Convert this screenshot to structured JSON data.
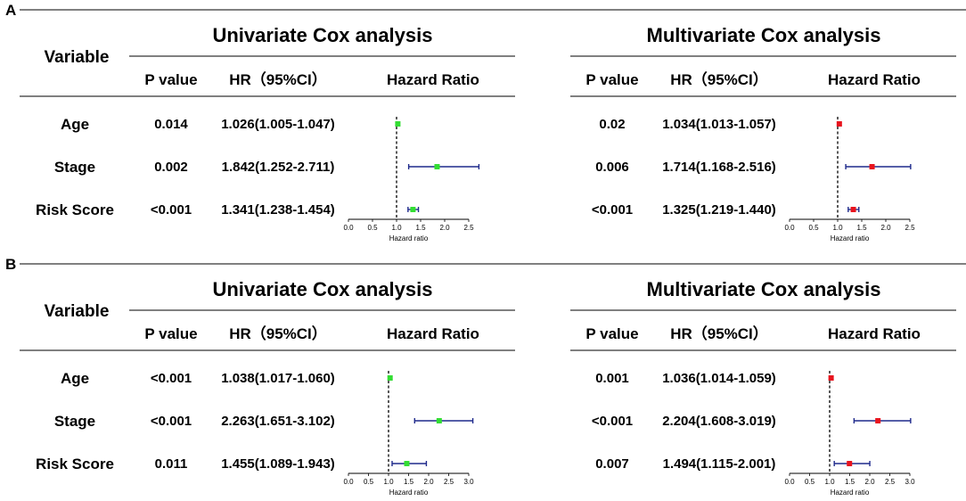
{
  "panels": [
    {
      "panel_label": "A",
      "variable_header": "Variable",
      "analyses": [
        {
          "title": "Univariate Cox analysis",
          "columns": {
            "p_value": "P value",
            "hr": "HR（95%CI）",
            "hazard_ratio": "Hazard Ratio"
          },
          "rows": [
            {
              "label": "Age",
              "p": "0.014",
              "hr_text": "1.026(1.005-1.047)"
            },
            {
              "label": "Stage",
              "p": "0.002",
              "hr_text": "1.842(1.252-2.711)"
            },
            {
              "label": "Risk Score",
              "p": "<0.001",
              "hr_text": "1.341(1.238-1.454)"
            }
          ]
        },
        {
          "title": "Multivariate Cox analysis",
          "columns": {
            "p_value": "P value",
            "hr": "HR（95%CI）",
            "hazard_ratio": "Hazard Ratio"
          },
          "rows": [
            {
              "label": "Age",
              "p": "0.02",
              "hr_text": "1.034(1.013-1.057)"
            },
            {
              "label": "Stage",
              "p": "0.006",
              "hr_text": "1.714(1.168-2.516)"
            },
            {
              "label": "Risk Score",
              "p": "<0.001",
              "hr_text": "1.325(1.219-1.440)"
            }
          ]
        }
      ]
    },
    {
      "panel_label": "B",
      "variable_header": "Variable",
      "analyses": [
        {
          "title": "Univariate Cox analysis",
          "columns": {
            "p_value": "P value",
            "hr": "HR（95%CI）",
            "hazard_ratio": "Hazard Ratio"
          },
          "rows": [
            {
              "label": "Age",
              "p": "<0.001",
              "hr_text": "1.038(1.017-1.060)"
            },
            {
              "label": "Stage",
              "p": "<0.001",
              "hr_text": "2.263(1.651-3.102)"
            },
            {
              "label": "Risk Score",
              "p": "0.011",
              "hr_text": "1.455(1.089-1.943)"
            }
          ]
        },
        {
          "title": "Multivariate Cox analysis",
          "columns": {
            "p_value": "P value",
            "hr": "HR（95%CI）",
            "hazard_ratio": "Hazard Ratio"
          },
          "rows": [
            {
              "label": "Age",
              "p": "0.001",
              "hr_text": "1.036(1.014-1.059)"
            },
            {
              "label": "Stage",
              "p": "<0.001",
              "hr_text": "2.204(1.608-3.019)"
            },
            {
              "label": "Risk Score",
              "p": "0.007",
              "hr_text": "1.494(1.115-2.001)"
            }
          ]
        }
      ]
    }
  ],
  "chart_data": [
    {
      "type": "forest",
      "panel": "A",
      "title": "Univariate Cox analysis",
      "xlabel": "Hazard ratio",
      "xlim": [
        0,
        2.5
      ],
      "ticks": [
        "0.0",
        "0.5",
        "1.0",
        "1.5",
        "2.0",
        "2.5"
      ],
      "reference": 1,
      "marker_color": "#33dd33",
      "ci_color": "#1f2a8c",
      "categories": [
        "Age",
        "Stage",
        "Risk Score"
      ],
      "hr": [
        1.026,
        1.842,
        1.341
      ],
      "lower": [
        1.005,
        1.252,
        1.238
      ],
      "upper": [
        1.047,
        2.711,
        1.454
      ]
    },
    {
      "type": "forest",
      "panel": "A",
      "title": "Multivariate Cox analysis",
      "xlabel": "Hazard ratio",
      "xlim": [
        0,
        2.5
      ],
      "ticks": [
        "0.0",
        "0.5",
        "1.0",
        "1.5",
        "2.0",
        "2.5"
      ],
      "reference": 1,
      "marker_color": "#e8141e",
      "ci_color": "#1f2a8c",
      "categories": [
        "Age",
        "Stage",
        "Risk Score"
      ],
      "hr": [
        1.034,
        1.714,
        1.325
      ],
      "lower": [
        1.013,
        1.168,
        1.219
      ],
      "upper": [
        1.057,
        2.516,
        1.44
      ]
    },
    {
      "type": "forest",
      "panel": "B",
      "title": "Univariate Cox analysis",
      "xlabel": "Hazard ratio",
      "xlim": [
        0,
        3
      ],
      "ticks": [
        "0.0",
        "0.5",
        "1.0",
        "1.5",
        "2.0",
        "2.5",
        "3.0"
      ],
      "reference": 1,
      "marker_color": "#33dd33",
      "ci_color": "#1f2a8c",
      "categories": [
        "Age",
        "Stage",
        "Risk Score"
      ],
      "hr": [
        1.038,
        2.263,
        1.455
      ],
      "lower": [
        1.017,
        1.651,
        1.089
      ],
      "upper": [
        1.06,
        3.102,
        1.943
      ]
    },
    {
      "type": "forest",
      "panel": "B",
      "title": "Multivariate Cox analysis",
      "xlabel": "Hazard ratio",
      "xlim": [
        0,
        3
      ],
      "ticks": [
        "0.0",
        "0.5",
        "1.0",
        "1.5",
        "2.0",
        "2.5",
        "3.0"
      ],
      "reference": 1,
      "marker_color": "#e8141e",
      "ci_color": "#1f2a8c",
      "categories": [
        "Age",
        "Stage",
        "Risk Score"
      ],
      "hr": [
        1.036,
        2.204,
        1.494
      ],
      "lower": [
        1.014,
        1.608,
        1.115
      ],
      "upper": [
        1.059,
        3.019,
        2.001
      ]
    }
  ]
}
